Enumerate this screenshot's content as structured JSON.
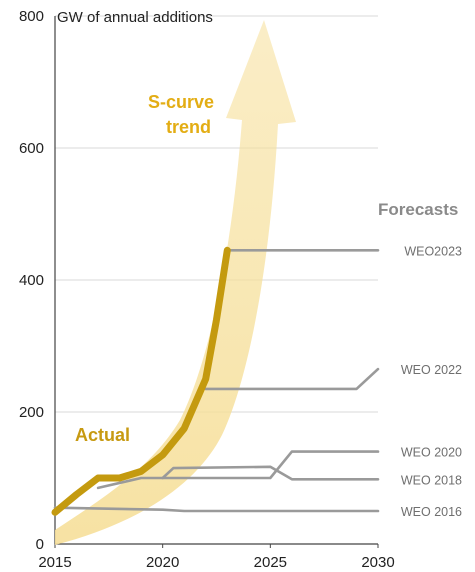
{
  "chart_data": {
    "type": "line",
    "ylabel": "GW of annual additions",
    "xlim": [
      2015,
      2030
    ],
    "ylim": [
      0,
      800
    ],
    "x_ticks": [
      "2015",
      "2020",
      "2025",
      "2030"
    ],
    "y_ticks": [
      "0",
      "200",
      "400",
      "600",
      "800"
    ],
    "grid": "horizontal",
    "forecasts_title": "Forecasts",
    "trend_label_line1": "S-curve",
    "trend_label_line2": "trend",
    "actual": {
      "name": "Actual",
      "color": "#c49a0f",
      "x": [
        2015,
        2016,
        2017,
        2018,
        2019,
        2020,
        2021,
        2022,
        2022.5,
        2023
      ],
      "y": [
        48,
        75,
        100,
        100,
        110,
        135,
        175,
        250,
        340,
        445
      ]
    },
    "forecast_color": "#9a9a9a",
    "forecasts": [
      {
        "name": "WEO2023",
        "x": [
          2023,
          2030
        ],
        "y": [
          445,
          445
        ]
      },
      {
        "name": "WEO 2022",
        "x": [
          2022,
          2029,
          2030
        ],
        "y": [
          235,
          235,
          265
        ]
      },
      {
        "name": "WEO 2020",
        "x": [
          2020,
          2025,
          2026,
          2030
        ],
        "y": [
          100,
          100,
          140,
          140
        ]
      },
      {
        "name": "WEO 2018",
        "x": [
          2017,
          2019,
          2020,
          2020.5,
          2025,
          2026,
          2030
        ],
        "y": [
          85,
          100,
          100,
          115,
          117,
          98,
          98
        ]
      },
      {
        "name": "WEO 2016",
        "x": [
          2015,
          2020,
          2021,
          2030
        ],
        "y": [
          55,
          52,
          50,
          50
        ]
      }
    ],
    "s_curve_color": "#f6df99"
  }
}
